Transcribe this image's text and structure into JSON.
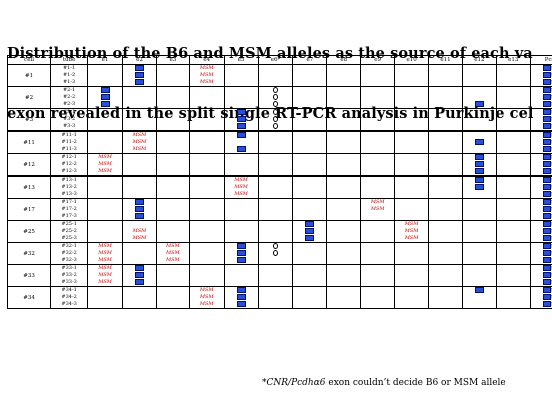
{
  "title_line1": "Distribution of the B6 and MSM alleles as the source of each va",
  "title_line2": "exon revealed in the split single RT-PCR analysis in Purkinje cel",
  "columns": [
    "cell",
    "tube",
    "e1",
    "e2",
    "e3",
    "e4",
    "e5",
    "e6*",
    "e7",
    "e8",
    "e9",
    "e10",
    "e11",
    "e12",
    "e13",
    "Pcdua"
  ],
  "legend": {
    "b6_color": "#2a4fd6",
    "msm_color": "#c00000",
    "msm_label": "MSM"
  },
  "rows": [
    {
      "cell": "#1",
      "tubes": [
        {
          "tube": "#1-1",
          "vals": {
            "e2": "B6",
            "e4": "MSM",
            "Pcdua": "BOTH"
          }
        },
        {
          "tube": "#1-2",
          "vals": {
            "e2": "B6",
            "e4": "MSM",
            "Pcdua": "BOTH"
          }
        },
        {
          "tube": "#1-3",
          "vals": {
            "e2": "B6",
            "e4": "MSM",
            "Pcdua": "BOTH"
          }
        }
      ]
    },
    {
      "cell": "#2",
      "tubes": [
        {
          "tube": "#2-1",
          "vals": {
            "e1": "B6",
            "e6*": "O",
            "Pcdua": "BOTH"
          }
        },
        {
          "tube": "#2-2",
          "vals": {
            "e1": "B6",
            "e6*": "O",
            "Pcdua": "BOTH"
          }
        },
        {
          "tube": "#2-3",
          "vals": {
            "e1": "B6",
            "e6*": "O",
            "e12": "B6",
            "Pcdua": "BOTH"
          }
        }
      ]
    },
    {
      "cell": "#3",
      "tubes": [
        {
          "tube": "#3-1",
          "vals": {
            "e5": "B6",
            "e6*": "O",
            "Pcdua": "BOTH"
          }
        },
        {
          "tube": "#3-2",
          "vals": {
            "e5": "B6",
            "e6*": "O",
            "Pcdua": "BOTH"
          }
        },
        {
          "tube": "#3-3",
          "vals": {
            "e5": "B6",
            "e6*": "O",
            "Pcdua": "BOTH"
          }
        }
      ]
    },
    {
      "cell": "#11",
      "tubes": [
        {
          "tube": "#11-1",
          "vals": {
            "e2": "MSM",
            "e5": "B6",
            "Pcdua": "BOTH"
          }
        },
        {
          "tube": "#11-2",
          "vals": {
            "e2": "MSM",
            "e12": "B6",
            "Pcdua": "BOTH"
          }
        },
        {
          "tube": "#11-3",
          "vals": {
            "e2": "MSM",
            "e5": "B6",
            "Pcdua": "BOTH"
          }
        }
      ]
    },
    {
      "cell": "#12",
      "tubes": [
        {
          "tube": "#12-1",
          "vals": {
            "e1": "MSM",
            "e12": "B6",
            "Pcdua": "BOTH"
          }
        },
        {
          "tube": "#12-2",
          "vals": {
            "e1": "MSM",
            "e12": "B6",
            "Pcdua": "BOTH"
          }
        },
        {
          "tube": "#12-3",
          "vals": {
            "e1": "MSM",
            "e12": "B6",
            "Pcdua": "BOTH"
          }
        }
      ]
    },
    {
      "cell": "#13",
      "tubes": [
        {
          "tube": "#13-1",
          "vals": {
            "e5": "MSM",
            "e12": "B6",
            "Pcdua": "BOTH"
          }
        },
        {
          "tube": "#13-2",
          "vals": {
            "e5": "MSM",
            "e12": "B6",
            "Pcdua": "BOTH"
          }
        },
        {
          "tube": "#13-3",
          "vals": {
            "e5": "MSM",
            "Pcdua": "BOTH"
          }
        }
      ]
    },
    {
      "cell": "#17",
      "tubes": [
        {
          "tube": "#17-1",
          "vals": {
            "e2": "B6",
            "e9": "MSM",
            "Pcdua": "BOTH"
          }
        },
        {
          "tube": "#17-2",
          "vals": {
            "e2": "B6",
            "e9": "MSM",
            "Pcdua": "BOTH"
          }
        },
        {
          "tube": "#17-3",
          "vals": {
            "e2": "B6",
            "Pcdua": "BOTH"
          }
        }
      ]
    },
    {
      "cell": "#25",
      "tubes": [
        {
          "tube": "#25-1",
          "vals": {
            "e7": "B6",
            "e10": "MSM",
            "Pcdua": "BOTH"
          }
        },
        {
          "tube": "#25-2",
          "vals": {
            "e2": "MSM",
            "e7": "B6",
            "e10": "MSM",
            "Pcdua": "BOTH"
          }
        },
        {
          "tube": "#25-3",
          "vals": {
            "e2": "MSM",
            "e7": "B6",
            "e10": "MSM",
            "Pcdua": "BOTH"
          }
        }
      ]
    },
    {
      "cell": "#32",
      "tubes": [
        {
          "tube": "#32-1",
          "vals": {
            "e1": "MSM",
            "e3": "MSM",
            "e5": "B6",
            "e6*": "O",
            "Pcdua": "BOTH"
          }
        },
        {
          "tube": "#32-2",
          "vals": {
            "e1": "MSM",
            "e3": "MSM",
            "e5": "B6",
            "e6*": "O",
            "Pcdua": "BOTH"
          }
        },
        {
          "tube": "#32-3",
          "vals": {
            "e1": "MSM",
            "e3": "MSM",
            "e5": "B6",
            "Pcdua": "BOTH"
          }
        }
      ]
    },
    {
      "cell": "#33",
      "tubes": [
        {
          "tube": "#33-1",
          "vals": {
            "e1": "MSM",
            "e2": "B6",
            "Pcdua": "BOTH"
          }
        },
        {
          "tube": "#33-2",
          "vals": {
            "e1": "MSM",
            "e2": "B6",
            "Pcdua": "BOTH"
          }
        },
        {
          "tube": "#33-3",
          "vals": {
            "e1": "MSM",
            "e2": "B6",
            "Pcdua": "BOTH"
          }
        }
      ]
    },
    {
      "cell": "#34",
      "tubes": [
        {
          "tube": "#34-1",
          "vals": {
            "e4": "MSM",
            "e5": "B6",
            "e12": "B6",
            "Pcdua": "BOTH"
          }
        },
        {
          "tube": "#34-2",
          "vals": {
            "e4": "MSM",
            "e5": "B6",
            "Pcdua": "BOTH"
          }
        },
        {
          "tube": "#34-3",
          "vals": {
            "e4": "MSM",
            "e5": "B6",
            "Pcdua": "BOTH"
          }
        }
      ]
    }
  ],
  "footnote": {
    "star": "*",
    "gene": "CNR/Pcdhα6",
    "rest": " exon couldn’t decide B6 or MSM allele"
  }
}
